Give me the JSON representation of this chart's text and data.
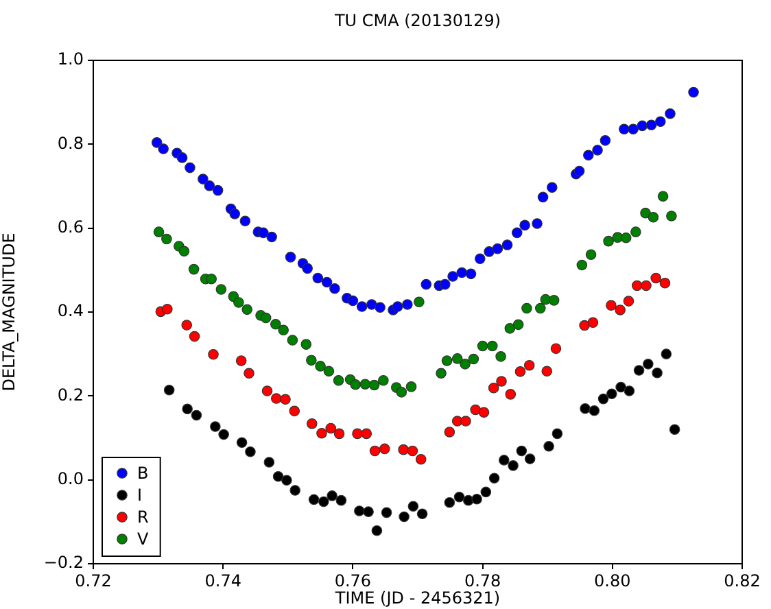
{
  "chart_data": {
    "type": "scatter",
    "title": "TU CMA (20130129)",
    "xlabel": "TIME (JD - 2456321)",
    "ylabel": "DELTA_MAGNITUDE",
    "xlim": [
      0.72,
      0.82
    ],
    "xticks": [
      0.72,
      0.74,
      0.76,
      0.78,
      {
        "value": 0.8,
        "label": "0.80"
      },
      0.82
    ],
    "ylim": [
      -0.2,
      1.0
    ],
    "yticks": [
      {
        "value": -0.2,
        "label": "−0.2"
      },
      {
        "value": 0,
        "label": "0.0"
      },
      0.2,
      0.4,
      0.6,
      0.8,
      {
        "value": 1.0,
        "label": "1.0"
      }
    ],
    "grid": false,
    "legend": "bottom left",
    "marker": "circle",
    "series": [
      {
        "name": "B",
        "color": "#0000ff",
        "x": [
          0.7298,
          0.7308,
          0.7329,
          0.7337,
          0.7349,
          0.7369,
          0.7379,
          0.7392,
          0.7412,
          0.7418,
          0.7434,
          0.7454,
          0.7462,
          0.7475,
          0.7504,
          0.7523,
          0.753,
          0.7546,
          0.756,
          0.7572,
          0.7591,
          0.76,
          0.7614,
          0.7629,
          0.7642,
          0.7662,
          0.7669,
          0.7684,
          0.7713,
          0.7733,
          0.7742,
          0.7754,
          0.7768,
          0.7782,
          0.7796,
          0.781,
          0.7823,
          0.7838,
          0.7853,
          0.7865,
          0.7884,
          0.7893,
          0.7907,
          0.7944,
          0.7949,
          0.7963,
          0.7977,
          0.7989,
          0.8018,
          0.8032,
          0.8046,
          0.806,
          0.8074,
          0.8089,
          0.8125
        ],
        "values": [
          0.804,
          0.789,
          0.779,
          0.768,
          0.744,
          0.717,
          0.701,
          0.69,
          0.646,
          0.634,
          0.617,
          0.591,
          0.589,
          0.579,
          0.531,
          0.516,
          0.504,
          0.481,
          0.471,
          0.456,
          0.433,
          0.427,
          0.413,
          0.418,
          0.411,
          0.405,
          0.413,
          0.418,
          0.466,
          0.463,
          0.466,
          0.485,
          0.494,
          0.491,
          0.527,
          0.544,
          0.551,
          0.56,
          0.589,
          0.607,
          0.611,
          0.674,
          0.697,
          0.729,
          0.736,
          0.774,
          0.786,
          0.809,
          0.836,
          0.836,
          0.844,
          0.846,
          0.854,
          0.873,
          0.924
        ]
      },
      {
        "name": "I",
        "color": "#000000",
        "x": [
          0.7317,
          0.7345,
          0.7359,
          0.7388,
          0.7401,
          0.7429,
          0.7442,
          0.7471,
          0.7485,
          0.7498,
          0.7511,
          0.754,
          0.7555,
          0.7568,
          0.7582,
          0.761,
          0.7624,
          0.7637,
          0.7652,
          0.7679,
          0.7693,
          0.7707,
          0.7749,
          0.7764,
          0.7778,
          0.7791,
          0.7805,
          0.7818,
          0.7833,
          0.7847,
          0.786,
          0.7873,
          0.7902,
          0.7915,
          0.7958,
          0.7972,
          0.7986,
          0.7999,
          0.8013,
          0.8026,
          0.8041,
          0.8055,
          0.8069,
          0.8083,
          0.8096
        ],
        "values": [
          0.214,
          0.169,
          0.154,
          0.127,
          0.108,
          0.089,
          0.067,
          0.042,
          0.008,
          -0.001,
          -0.025,
          -0.047,
          -0.052,
          -0.038,
          -0.049,
          -0.074,
          -0.076,
          -0.121,
          -0.078,
          -0.088,
          -0.063,
          -0.081,
          -0.054,
          -0.041,
          -0.049,
          -0.046,
          -0.029,
          0.004,
          0.047,
          0.034,
          0.069,
          0.05,
          0.08,
          0.11,
          0.17,
          0.165,
          0.193,
          0.205,
          0.221,
          0.212,
          0.261,
          0.276,
          0.255,
          0.3,
          0.12
        ]
      },
      {
        "name": "R",
        "color": "#ff0000",
        "x": [
          0.7304,
          0.7314,
          0.7344,
          0.7356,
          0.7385,
          0.7428,
          0.744,
          0.7468,
          0.7482,
          0.7496,
          0.751,
          0.7537,
          0.7552,
          0.7566,
          0.7579,
          0.7607,
          0.7621,
          0.7634,
          0.7649,
          0.7678,
          0.7692,
          0.7705,
          0.7749,
          0.7761,
          0.7774,
          0.7789,
          0.7802,
          0.7817,
          0.7829,
          0.7843,
          0.7858,
          0.7872,
          0.7899,
          0.7913,
          0.7957,
          0.797,
          0.7998,
          0.8012,
          0.8025,
          0.8038,
          0.8052,
          0.8067,
          0.8081
        ],
        "values": [
          0.401,
          0.407,
          0.369,
          0.342,
          0.299,
          0.284,
          0.254,
          0.212,
          0.194,
          0.192,
          0.164,
          0.134,
          0.111,
          0.123,
          0.11,
          0.11,
          0.11,
          0.069,
          0.074,
          0.072,
          0.069,
          0.049,
          0.114,
          0.14,
          0.14,
          0.167,
          0.161,
          0.219,
          0.235,
          0.204,
          0.258,
          0.273,
          0.259,
          0.313,
          0.368,
          0.375,
          0.416,
          0.405,
          0.426,
          0.463,
          0.463,
          0.481,
          0.469
        ]
      },
      {
        "name": "V",
        "color": "#008000",
        "x": [
          0.7301,
          0.7313,
          0.7332,
          0.734,
          0.7355,
          0.7373,
          0.7382,
          0.7397,
          0.7416,
          0.7424,
          0.7437,
          0.7458,
          0.7466,
          0.7481,
          0.7493,
          0.7507,
          0.7528,
          0.7536,
          0.755,
          0.7563,
          0.7578,
          0.7596,
          0.7604,
          0.7619,
          0.7633,
          0.7647,
          0.7667,
          0.7675,
          0.769,
          0.7702,
          0.7736,
          0.7745,
          0.7761,
          0.7773,
          0.7786,
          0.78,
          0.7815,
          0.7828,
          0.7842,
          0.7855,
          0.7868,
          0.7889,
          0.7897,
          0.791,
          0.7953,
          0.7967,
          0.7994,
          0.8008,
          0.8021,
          0.8036,
          0.8051,
          0.8063,
          0.8078,
          0.8091
        ],
        "values": [
          0.591,
          0.574,
          0.557,
          0.545,
          0.502,
          0.479,
          0.479,
          0.454,
          0.437,
          0.423,
          0.406,
          0.392,
          0.386,
          0.371,
          0.357,
          0.333,
          0.323,
          0.285,
          0.271,
          0.259,
          0.237,
          0.239,
          0.227,
          0.228,
          0.226,
          0.237,
          0.22,
          0.209,
          0.222,
          0.424,
          0.254,
          0.284,
          0.289,
          0.276,
          0.288,
          0.319,
          0.319,
          0.294,
          0.361,
          0.37,
          0.409,
          0.409,
          0.43,
          0.428,
          0.512,
          0.537,
          0.569,
          0.578,
          0.577,
          0.591,
          0.636,
          0.626,
          0.676,
          0.629
        ]
      }
    ]
  }
}
